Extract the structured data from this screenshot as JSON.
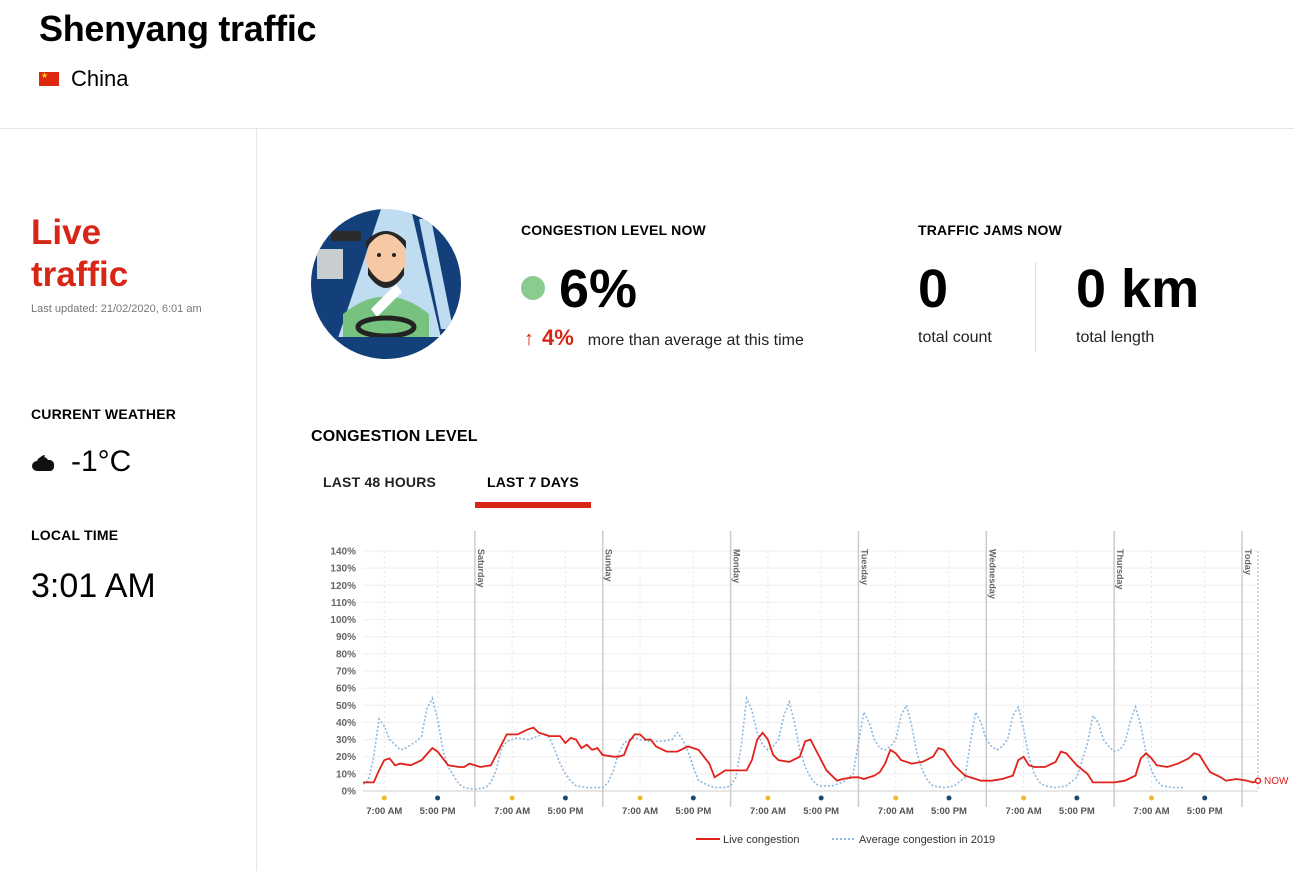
{
  "header": {
    "title": "Shenyang traffic",
    "country": "China"
  },
  "sidebar": {
    "live_title": "Live traffic",
    "last_updated": "Last updated: 21/02/2020, 6:01 am",
    "weather_label": "CURRENT WEATHER",
    "weather_temp": "-1°C",
    "weather_icon": "partly-cloudy-night-icon",
    "local_time_label": "LOCAL TIME",
    "local_time": "3:01 AM"
  },
  "congestion_now": {
    "label": "CONGESTION LEVEL NOW",
    "value": "6%",
    "change": "4%",
    "change_text": "more than average at this time",
    "status_color": "#8ccb8f"
  },
  "traffic_jams": {
    "label": "TRAFFIC JAMS NOW",
    "count": "0",
    "count_label": "total count",
    "length": "0 km",
    "length_label": "total length"
  },
  "congestion_level": {
    "label": "CONGESTION LEVEL",
    "tabs": [
      {
        "label": "LAST 48 HOURS",
        "active": false
      },
      {
        "label": "LAST 7 DAYS",
        "active": true
      }
    ]
  },
  "colors": {
    "accent": "#d72516",
    "live_line": "#e3211b",
    "average_line": "#8db8e0",
    "morning_dot": "#f2b92b",
    "evening_dot": "#1d4a6e"
  },
  "chart_data": {
    "type": "line",
    "x_unit": "hours",
    "xlim": [
      0,
      168
    ],
    "ylim": [
      0,
      140
    ],
    "y_ticks": [
      "0%",
      "10%",
      "20%",
      "30%",
      "40%",
      "50%",
      "60%",
      "70%",
      "80%",
      "90%",
      "100%",
      "110%",
      "120%",
      "130%",
      "140%"
    ],
    "day_markers": [
      {
        "label": "Saturday",
        "x": 21
      },
      {
        "label": "Sunday",
        "x": 45
      },
      {
        "label": "Monday",
        "x": 69
      },
      {
        "label": "Tuesday",
        "x": 93
      },
      {
        "label": "Wednesday",
        "x": 117
      },
      {
        "label": "Thursday",
        "x": 141
      },
      {
        "label": "Today",
        "x": 165
      }
    ],
    "time_ticks": [
      {
        "label": "7:00 AM",
        "x": 4
      },
      {
        "label": "5:00 PM",
        "x": 14
      },
      {
        "label": "7:00 AM",
        "x": 28
      },
      {
        "label": "5:00 PM",
        "x": 38
      },
      {
        "label": "7:00 AM",
        "x": 52
      },
      {
        "label": "5:00 PM",
        "x": 62
      },
      {
        "label": "7:00 AM",
        "x": 76
      },
      {
        "label": "5:00 PM",
        "x": 86
      },
      {
        "label": "7:00 AM",
        "x": 100
      },
      {
        "label": "5:00 PM",
        "x": 110
      },
      {
        "label": "7:00 AM",
        "x": 124
      },
      {
        "label": "5:00 PM",
        "x": 134
      },
      {
        "label": "7:00 AM",
        "x": 148
      },
      {
        "label": "5:00 PM",
        "x": 158
      }
    ],
    "now_label": "NOW",
    "now_x": 168,
    "series": [
      {
        "name": "Live congestion",
        "points": [
          [
            0,
            5
          ],
          [
            2,
            5
          ],
          [
            3,
            12
          ],
          [
            4,
            18
          ],
          [
            5,
            19
          ],
          [
            6,
            15
          ],
          [
            7,
            16
          ],
          [
            9,
            15
          ],
          [
            11,
            18
          ],
          [
            13,
            25
          ],
          [
            14,
            23
          ],
          [
            16,
            15
          ],
          [
            18,
            14
          ],
          [
            19,
            14
          ],
          [
            20,
            16
          ],
          [
            22,
            14
          ],
          [
            24,
            15
          ],
          [
            26,
            27
          ],
          [
            27,
            33
          ],
          [
            28,
            33
          ],
          [
            29,
            33
          ],
          [
            31,
            36
          ],
          [
            32,
            37
          ],
          [
            33,
            34
          ],
          [
            35,
            32
          ],
          [
            37,
            32
          ],
          [
            38,
            28
          ],
          [
            39,
            31
          ],
          [
            40,
            30
          ],
          [
            41,
            25
          ],
          [
            42,
            27
          ],
          [
            43,
            24
          ],
          [
            44,
            25
          ],
          [
            45,
            21
          ],
          [
            47,
            20
          ],
          [
            48,
            20
          ],
          [
            49,
            21
          ],
          [
            50,
            29
          ],
          [
            51,
            33
          ],
          [
            52,
            33
          ],
          [
            53,
            30
          ],
          [
            54,
            30
          ],
          [
            55,
            26
          ],
          [
            57,
            23
          ],
          [
            59,
            23
          ],
          [
            61,
            26
          ],
          [
            63,
            24
          ],
          [
            65,
            16
          ],
          [
            66,
            8
          ],
          [
            68,
            12
          ],
          [
            70,
            12
          ],
          [
            72,
            12
          ],
          [
            73,
            18
          ],
          [
            74,
            30
          ],
          [
            75,
            34
          ],
          [
            76,
            30
          ],
          [
            77,
            21
          ],
          [
            78,
            18
          ],
          [
            80,
            17
          ],
          [
            82,
            20
          ],
          [
            83,
            29
          ],
          [
            84,
            30
          ],
          [
            85,
            24
          ],
          [
            87,
            12
          ],
          [
            89,
            6
          ],
          [
            90,
            7
          ],
          [
            92,
            8
          ],
          [
            93,
            8
          ],
          [
            94,
            7
          ],
          [
            96,
            9
          ],
          [
            97,
            11
          ],
          [
            98,
            16
          ],
          [
            99,
            24
          ],
          [
            100,
            22
          ],
          [
            101,
            18
          ],
          [
            103,
            16
          ],
          [
            105,
            17
          ],
          [
            107,
            20
          ],
          [
            108,
            25
          ],
          [
            109,
            24
          ],
          [
            111,
            15
          ],
          [
            113,
            9
          ],
          [
            115,
            7
          ],
          [
            116,
            6
          ],
          [
            118,
            6
          ],
          [
            120,
            7
          ],
          [
            122,
            9
          ],
          [
            123,
            18
          ],
          [
            124,
            20
          ],
          [
            125,
            15
          ],
          [
            126,
            14
          ],
          [
            128,
            14
          ],
          [
            130,
            17
          ],
          [
            131,
            23
          ],
          [
            132,
            22
          ],
          [
            134,
            15
          ],
          [
            136,
            10
          ],
          [
            137,
            5
          ],
          [
            139,
            5
          ],
          [
            141,
            5
          ],
          [
            143,
            6
          ],
          [
            145,
            9
          ],
          [
            146,
            19
          ],
          [
            147,
            22
          ],
          [
            148,
            19
          ],
          [
            149,
            15
          ],
          [
            151,
            14
          ],
          [
            153,
            16
          ],
          [
            155,
            19
          ],
          [
            156,
            22
          ],
          [
            157,
            21
          ],
          [
            158,
            16
          ],
          [
            159,
            11
          ],
          [
            161,
            8
          ],
          [
            162,
            6
          ],
          [
            164,
            7
          ],
          [
            166,
            6
          ],
          [
            167,
            5
          ],
          [
            168,
            6
          ]
        ]
      },
      {
        "name": "Average congestion in 2019",
        "points": [
          [
            0,
            4
          ],
          [
            1,
            6
          ],
          [
            2,
            20
          ],
          [
            3,
            42
          ],
          [
            4,
            38
          ],
          [
            5,
            30
          ],
          [
            6,
            27
          ],
          [
            7,
            24
          ],
          [
            8,
            25
          ],
          [
            10,
            29
          ],
          [
            11,
            32
          ],
          [
            12,
            48
          ],
          [
            13,
            54
          ],
          [
            14,
            42
          ],
          [
            15,
            24
          ],
          [
            16,
            14
          ],
          [
            17,
            9
          ],
          [
            18,
            4
          ],
          [
            19,
            2
          ],
          [
            21,
            1
          ],
          [
            23,
            2
          ],
          [
            24,
            5
          ],
          [
            25,
            12
          ],
          [
            26,
            25
          ],
          [
            27,
            29
          ],
          [
            28,
            30
          ],
          [
            29,
            31
          ],
          [
            31,
            30
          ],
          [
            32,
            31
          ],
          [
            33,
            32
          ],
          [
            34,
            34
          ],
          [
            35,
            31
          ],
          [
            36,
            24
          ],
          [
            37,
            16
          ],
          [
            38,
            10
          ],
          [
            39,
            6
          ],
          [
            40,
            3
          ],
          [
            42,
            2
          ],
          [
            44,
            2
          ],
          [
            45,
            2
          ],
          [
            46,
            5
          ],
          [
            47,
            12
          ],
          [
            48,
            22
          ],
          [
            49,
            28
          ],
          [
            50,
            30
          ],
          [
            51,
            31
          ],
          [
            52,
            30
          ],
          [
            54,
            29
          ],
          [
            56,
            29
          ],
          [
            58,
            30
          ],
          [
            59,
            34
          ],
          [
            60,
            30
          ],
          [
            61,
            23
          ],
          [
            62,
            14
          ],
          [
            63,
            6
          ],
          [
            65,
            3
          ],
          [
            66,
            2
          ],
          [
            67,
            2
          ],
          [
            68,
            2
          ],
          [
            69,
            3
          ],
          [
            70,
            8
          ],
          [
            71,
            26
          ],
          [
            72,
            54
          ],
          [
            73,
            47
          ],
          [
            74,
            34
          ],
          [
            75,
            27
          ],
          [
            76,
            24
          ],
          [
            77,
            26
          ],
          [
            78,
            30
          ],
          [
            79,
            44
          ],
          [
            80,
            52
          ],
          [
            81,
            40
          ],
          [
            82,
            24
          ],
          [
            83,
            14
          ],
          [
            84,
            8
          ],
          [
            85,
            4
          ],
          [
            86,
            3
          ],
          [
            88,
            3
          ],
          [
            90,
            5
          ],
          [
            92,
            10
          ],
          [
            93,
            28
          ],
          [
            94,
            46
          ],
          [
            95,
            40
          ],
          [
            96,
            30
          ],
          [
            97,
            25
          ],
          [
            98,
            24
          ],
          [
            99,
            26
          ],
          [
            100,
            30
          ],
          [
            101,
            44
          ],
          [
            102,
            50
          ],
          [
            103,
            38
          ],
          [
            104,
            22
          ],
          [
            105,
            12
          ],
          [
            106,
            6
          ],
          [
            107,
            3
          ],
          [
            109,
            2
          ],
          [
            111,
            3
          ],
          [
            113,
            8
          ],
          [
            114,
            28
          ],
          [
            115,
            46
          ],
          [
            116,
            40
          ],
          [
            117,
            30
          ],
          [
            118,
            26
          ],
          [
            119,
            24
          ],
          [
            120,
            26
          ],
          [
            121,
            30
          ],
          [
            122,
            44
          ],
          [
            123,
            49
          ],
          [
            124,
            36
          ],
          [
            125,
            20
          ],
          [
            126,
            10
          ],
          [
            127,
            5
          ],
          [
            128,
            3
          ],
          [
            130,
            2
          ],
          [
            132,
            3
          ],
          [
            134,
            8
          ],
          [
            136,
            28
          ],
          [
            137,
            44
          ],
          [
            138,
            40
          ],
          [
            139,
            30
          ],
          [
            140,
            26
          ],
          [
            141,
            23
          ],
          [
            142,
            24
          ],
          [
            143,
            28
          ],
          [
            144,
            40
          ],
          [
            145,
            49
          ],
          [
            146,
            38
          ],
          [
            147,
            22
          ],
          [
            148,
            12
          ],
          [
            149,
            6
          ],
          [
            150,
            3
          ],
          [
            152,
            2
          ],
          [
            154,
            2
          ]
        ]
      }
    ],
    "legend": {
      "position": "bottom-center"
    }
  }
}
